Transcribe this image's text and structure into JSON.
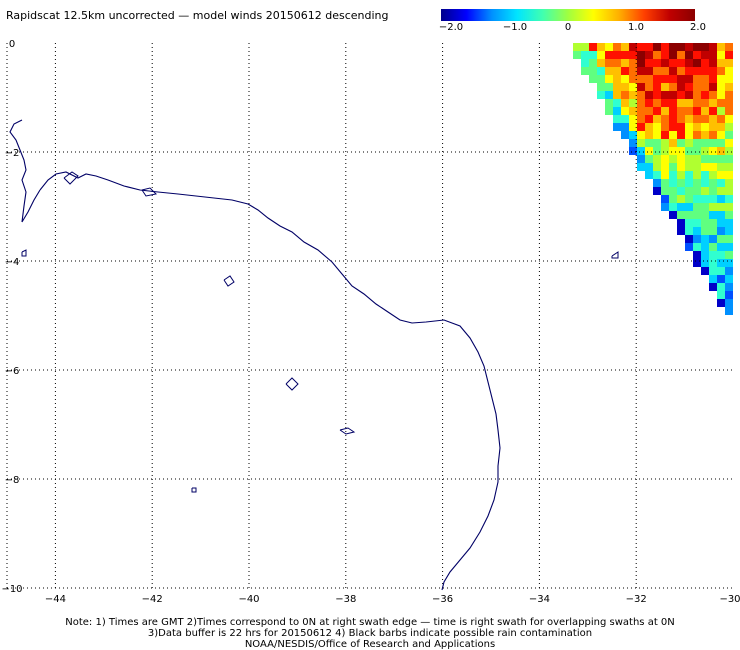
{
  "title": "Rapidscat 12.5km uncorrected — model winds 20150612 descending",
  "colorbar": {
    "labels": [
      "−2.0",
      "−1.0",
      "0",
      "1.0",
      "2.0"
    ],
    "min": -2.0,
    "max": 2.0,
    "colors": [
      "#00008b",
      "#0000ff",
      "#0090ff",
      "#00e5ff",
      "#40ffb0",
      "#a0ff40",
      "#ffff00",
      "#ffb000",
      "#ff4000",
      "#c00000",
      "#8b0000"
    ]
  },
  "map": {
    "lon_range": [
      -45,
      -30
    ],
    "lat_range": [
      -10,
      0
    ],
    "x_ticks": [
      "−44",
      "−42",
      "−40",
      "−38",
      "−36",
      "−34",
      "−32",
      "−30"
    ],
    "y_ticks": [
      "0",
      "−2",
      "−4",
      "−6",
      "−8",
      "−10"
    ],
    "grid": "dotted",
    "coastline_color": "#000066"
  },
  "notes": {
    "line1": "Note: 1) Times are GMT 2)Times correspond to 0N at right swath edge — time is right swath for overlapping swaths at 0N",
    "line2": "3)Data buffer is 22 hrs for 20150612 4) Black barbs indicate possible rain contamination",
    "line3": "NOAA/NESDIS/Office of Research and Applications"
  }
}
